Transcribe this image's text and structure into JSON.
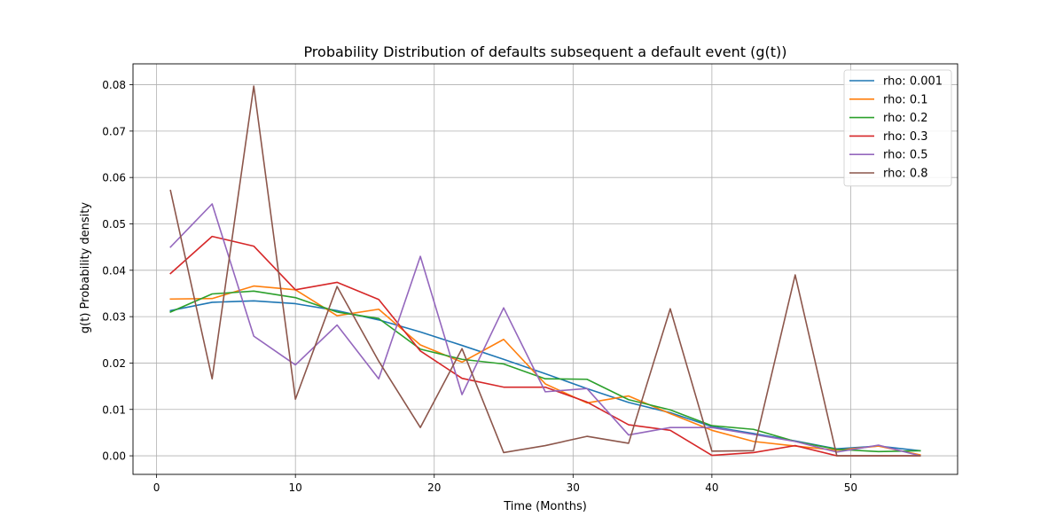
{
  "chart_data": {
    "type": "line",
    "title": "Probability Distribution of defaults subsequent a default event (g(t))",
    "xlabel": "Time (Months)",
    "ylabel": "g(t) Probability density",
    "xlim": [
      -1.7,
      57.7
    ],
    "ylim": [
      -0.004,
      0.0845
    ],
    "xticks": [
      0,
      10,
      20,
      30,
      40,
      50
    ],
    "xtick_labels": [
      "0",
      "10",
      "20",
      "30",
      "40",
      "50"
    ],
    "yticks": [
      0.0,
      0.01,
      0.02,
      0.03,
      0.04,
      0.05,
      0.06,
      0.07,
      0.08
    ],
    "ytick_labels": [
      "0.00",
      "0.01",
      "0.02",
      "0.03",
      "0.04",
      "0.05",
      "0.06",
      "0.07",
      "0.08"
    ],
    "grid": true,
    "legend_position": "top-right",
    "x": [
      1,
      4,
      7,
      10,
      13,
      16,
      19,
      22,
      25,
      28,
      31,
      34,
      37,
      40,
      43,
      46,
      49,
      52,
      55
    ],
    "series": [
      {
        "name": "rho: 0.001",
        "color": "#1f77b4",
        "values": [
          0.0313,
          0.0331,
          0.0334,
          0.0328,
          0.0313,
          0.0293,
          0.0267,
          0.0238,
          0.0208,
          0.0177,
          0.0145,
          0.0115,
          0.0093,
          0.0063,
          0.0048,
          0.0032,
          0.0015,
          0.0021,
          0.0011
        ]
      },
      {
        "name": "rho: 0.1",
        "color": "#ff7f0e",
        "values": [
          0.0338,
          0.0339,
          0.0366,
          0.0358,
          0.0302,
          0.0316,
          0.0239,
          0.0202,
          0.0251,
          0.0155,
          0.0114,
          0.0129,
          0.0091,
          0.0055,
          0.0031,
          0.0021,
          0.0012,
          0.0021,
          0.0002
        ]
      },
      {
        "name": "rho: 0.2",
        "color": "#2ca02c",
        "values": [
          0.031,
          0.0349,
          0.0355,
          0.0341,
          0.031,
          0.0296,
          0.023,
          0.0208,
          0.0198,
          0.0166,
          0.0165,
          0.0121,
          0.0099,
          0.0065,
          0.0057,
          0.0031,
          0.0014,
          0.0009,
          0.0011
        ]
      },
      {
        "name": "rho: 0.3",
        "color": "#d62728",
        "values": [
          0.0393,
          0.0473,
          0.0452,
          0.0358,
          0.0374,
          0.0337,
          0.0226,
          0.0167,
          0.0148,
          0.0148,
          0.0116,
          0.0067,
          0.0055,
          0.0001,
          0.0007,
          0.0022,
          0.0,
          0.0,
          0.0
        ]
      },
      {
        "name": "rho: 0.5",
        "color": "#9467bd",
        "values": [
          0.045,
          0.0543,
          0.0258,
          0.0196,
          0.0282,
          0.0166,
          0.043,
          0.0132,
          0.0319,
          0.0138,
          0.0145,
          0.0045,
          0.0061,
          0.0061,
          0.0046,
          0.0031,
          0.0008,
          0.0023,
          0.0
        ]
      },
      {
        "name": "rho: 0.8",
        "color": "#8c564b",
        "values": [
          0.0572,
          0.0166,
          0.0797,
          0.0122,
          0.0365,
          0.0204,
          0.0061,
          0.0231,
          0.0007,
          0.0022,
          0.0042,
          0.0027,
          0.0317,
          0.001,
          0.0011,
          0.039,
          0.0,
          0.0,
          0.0
        ]
      }
    ]
  }
}
